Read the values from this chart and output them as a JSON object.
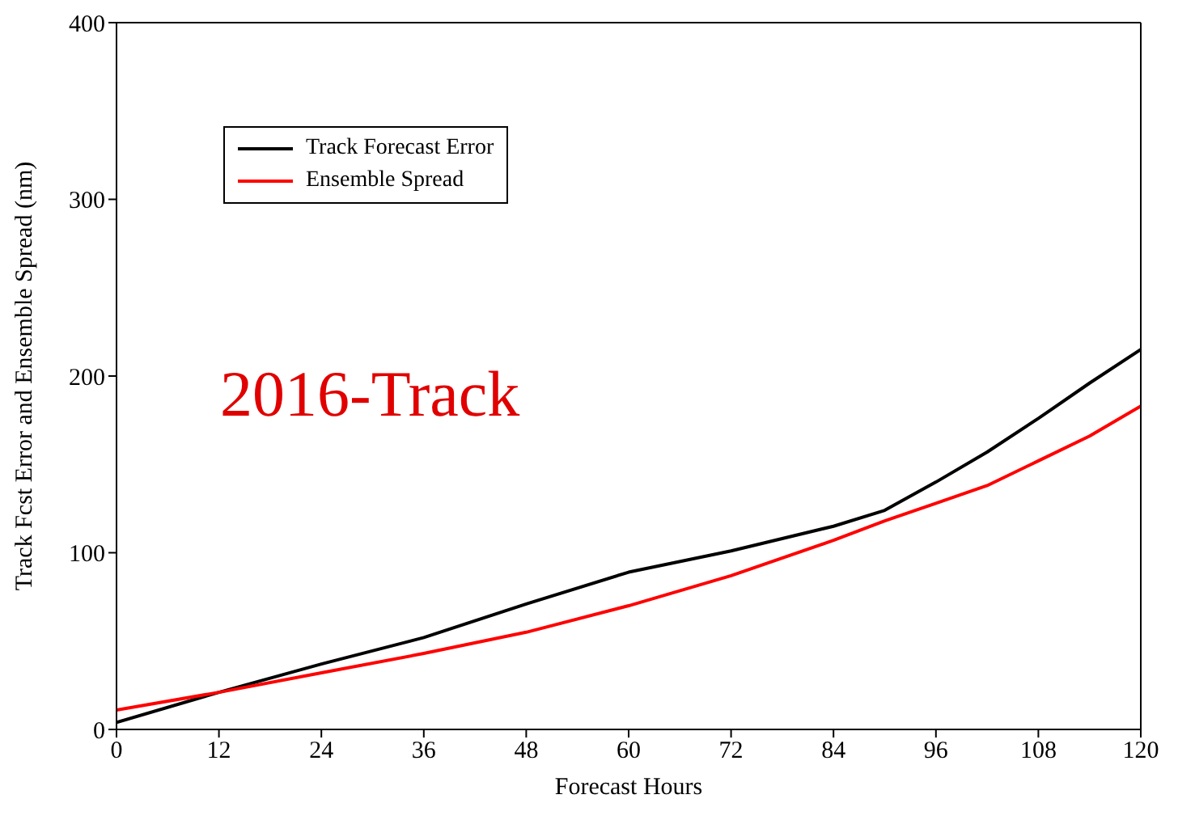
{
  "chart_data": {
    "type": "line",
    "xlabel": "Forecast Hours",
    "ylabel": "Track Fcst Error and Ensemble Spread (nm)",
    "x": [
      0,
      12,
      24,
      36,
      48,
      60,
      72,
      84,
      90,
      96,
      102,
      108,
      114,
      120
    ],
    "series": [
      {
        "name": "Track Forecast Error",
        "color": "#000000",
        "values": [
          4,
          21,
          37,
          52,
          71,
          89,
          101,
          115,
          124,
          140,
          157,
          176,
          196,
          215
        ]
      },
      {
        "name": "Ensemble Spread",
        "color": "#ff0000",
        "values": [
          11,
          21,
          32,
          43,
          55,
          70,
          87,
          107,
          118,
          128,
          138,
          152,
          166,
          183
        ]
      }
    ],
    "xlim": [
      0,
      120
    ],
    "xticks": [
      0,
      12,
      24,
      36,
      48,
      60,
      72,
      84,
      96,
      108,
      120
    ],
    "ylim": [
      0,
      400
    ],
    "yticks": [
      0,
      100,
      200,
      300,
      400
    ],
    "grid": false,
    "legend": "top left",
    "marker": "none",
    "line_style": "solid",
    "annotations": [
      {
        "text": "2016-Track"
      }
    ]
  }
}
